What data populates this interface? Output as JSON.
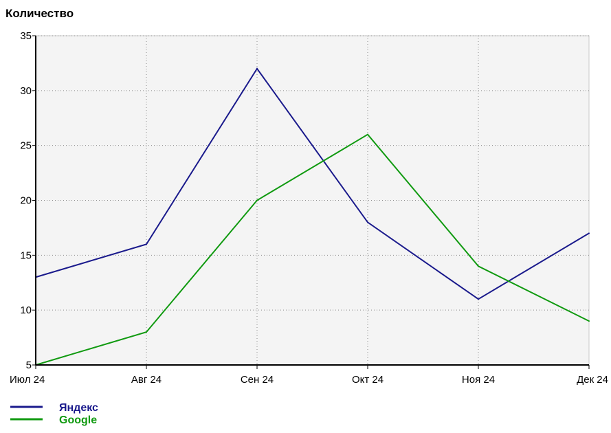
{
  "chart_data": {
    "type": "line",
    "title": "",
    "ylabel": "Количество",
    "xlabel": "",
    "categories": [
      "Июл 24",
      "Авг 24",
      "Сен 24",
      "Окт 24",
      "Ноя 24",
      "Дек 24"
    ],
    "ylim": [
      5,
      35
    ],
    "yticks": [
      "5",
      "10",
      "15",
      "20",
      "25",
      "30",
      "35"
    ],
    "grid": true,
    "legend_position": "bottom-left",
    "series": [
      {
        "name": "Яндекс",
        "color": "#1a1a8c",
        "values": [
          13,
          16,
          32,
          18,
          11,
          17
        ]
      },
      {
        "name": "Google",
        "color": "#109a10",
        "values": [
          5,
          8,
          20,
          26,
          14,
          9
        ]
      }
    ]
  }
}
